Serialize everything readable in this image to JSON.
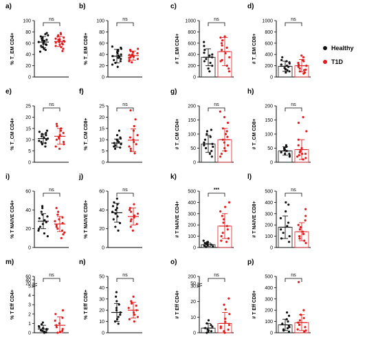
{
  "legend": {
    "healthy_label": "Healthy",
    "t1d_label": "T1D",
    "healthy_color": "#111111",
    "t1d_color": "#e31a1c"
  },
  "chart_data": [
    {
      "panel": "a)",
      "type": "scatter",
      "ylabel": "% T_EM CD4+",
      "ylim": [
        0,
        100
      ],
      "yticks": [
        0,
        20,
        40,
        60,
        80,
        100
      ],
      "sig": "ns",
      "series": [
        {
          "name": "Healthy",
          "mean": 62,
          "sd": 10,
          "values": [
            45,
            48,
            50,
            53,
            55,
            57,
            58,
            59,
            60,
            61,
            62,
            63,
            64,
            65,
            66,
            68,
            70,
            72,
            74,
            76,
            78
          ]
        },
        {
          "name": "T1D",
          "mean": 63,
          "sd": 9,
          "values": [
            46,
            50,
            53,
            55,
            57,
            58,
            60,
            61,
            62,
            63,
            64,
            65,
            66,
            67,
            68,
            70,
            72,
            74,
            76,
            78
          ]
        }
      ]
    },
    {
      "panel": "b)",
      "type": "scatter",
      "ylabel": "% T_EM CD8+",
      "ylim": [
        0,
        100
      ],
      "yticks": [
        0,
        20,
        40,
        60,
        80,
        100
      ],
      "sig": "ns",
      "series": [
        {
          "name": "Healthy",
          "mean": 37,
          "sd": 12,
          "values": [
            18,
            22,
            25,
            28,
            30,
            32,
            34,
            35,
            37,
            38,
            40,
            42,
            44,
            46,
            48,
            50,
            52,
            54
          ]
        },
        {
          "name": "T1D",
          "mean": 38,
          "sd": 8,
          "values": [
            26,
            28,
            30,
            32,
            34,
            35,
            36,
            37,
            38,
            39,
            40,
            42,
            44,
            46,
            48,
            50
          ]
        }
      ]
    },
    {
      "panel": "c)",
      "type": "bar_scatter",
      "ylabel": "# T_EM CD4+",
      "ylim": [
        0,
        1000
      ],
      "yticks": [
        0,
        200,
        400,
        600,
        800,
        1000
      ],
      "sig": "ns",
      "series": [
        {
          "name": "Healthy",
          "mean": 350,
          "sd": 150,
          "values": [
            100,
            150,
            200,
            250,
            280,
            320,
            350,
            380,
            400,
            430,
            480,
            550,
            620
          ]
        },
        {
          "name": "T1D",
          "mean": 450,
          "sd": 250,
          "values": [
            100,
            150,
            200,
            280,
            350,
            420,
            480,
            520,
            560,
            600,
            650,
            700,
            720,
            300
          ]
        }
      ]
    },
    {
      "panel": "d)",
      "type": "bar_scatter",
      "ylabel": "# T_EM CD8+",
      "ylim": [
        0,
        1000
      ],
      "yticks": [
        0,
        200,
        400,
        600,
        800,
        1000
      ],
      "sig": "ns",
      "series": [
        {
          "name": "Healthy",
          "mean": 190,
          "sd": 90,
          "values": [
            80,
            100,
            120,
            140,
            160,
            180,
            200,
            220,
            240,
            260,
            280,
            300,
            350
          ]
        },
        {
          "name": "T1D",
          "mean": 200,
          "sd": 110,
          "values": [
            60,
            80,
            100,
            130,
            150,
            180,
            200,
            220,
            250,
            280,
            300,
            350,
            380,
            120
          ]
        }
      ]
    },
    {
      "panel": "e)",
      "type": "scatter",
      "ylabel": "% T_CM CD4+",
      "ylim": [
        0,
        25
      ],
      "yticks": [
        0,
        5,
        10,
        15,
        20,
        25
      ],
      "sig": "ns",
      "series": [
        {
          "name": "Healthy",
          "mean": 10.5,
          "sd": 2,
          "values": [
            7,
            8,
            8.5,
            9,
            9.5,
            10,
            10.5,
            11,
            11.5,
            12,
            12.5,
            13,
            13.5,
            14
          ]
        },
        {
          "name": "T1D",
          "mean": 11.5,
          "sd": 3.5,
          "values": [
            6,
            7,
            8,
            9,
            10,
            10.5,
            11,
            12,
            13,
            14,
            15,
            16,
            17
          ]
        }
      ]
    },
    {
      "panel": "f)",
      "type": "scatter",
      "ylabel": "% T_CM CD8+",
      "ylim": [
        0,
        25
      ],
      "yticks": [
        0,
        5,
        10,
        15,
        20,
        25
      ],
      "sig": "ns",
      "series": [
        {
          "name": "Healthy",
          "mean": 8.5,
          "sd": 1.8,
          "values": [
            6,
            6.5,
            7,
            7.5,
            8,
            8.5,
            9,
            9.5,
            10,
            10.5,
            11,
            12,
            14
          ]
        },
        {
          "name": "T1D",
          "mean": 9.8,
          "sd": 5,
          "values": [
            4,
            5,
            6,
            7,
            8,
            9,
            10,
            11,
            12,
            14,
            16,
            19,
            23
          ]
        }
      ]
    },
    {
      "panel": "g)",
      "type": "bar_scatter",
      "ylabel": "# T_CM CD4+",
      "ylim": [
        0,
        200
      ],
      "yticks": [
        0,
        50,
        100,
        150,
        200
      ],
      "sig": "ns",
      "series": [
        {
          "name": "Healthy",
          "mean": 65,
          "sd": 30,
          "values": [
            20,
            30,
            40,
            50,
            55,
            60,
            65,
            70,
            80,
            90,
            100,
            110,
            115
          ]
        },
        {
          "name": "T1D",
          "mean": 80,
          "sd": 40,
          "values": [
            20,
            30,
            40,
            50,
            60,
            70,
            80,
            90,
            100,
            120,
            140,
            160,
            180,
            110
          ]
        }
      ]
    },
    {
      "panel": "h)",
      "type": "bar_scatter",
      "ylabel": "# T_CM CD8+",
      "ylim": [
        0,
        200
      ],
      "yticks": [
        0,
        50,
        100,
        150,
        200
      ],
      "sig": "ns",
      "series": [
        {
          "name": "Healthy",
          "mean": 40,
          "sd": 15,
          "values": [
            20,
            25,
            30,
            35,
            40,
            45,
            50,
            55,
            60,
            30,
            45
          ]
        },
        {
          "name": "T1D",
          "mean": 45,
          "sd": 35,
          "values": [
            10,
            15,
            20,
            25,
            30,
            35,
            40,
            50,
            60,
            80,
            110,
            140,
            160,
            30
          ]
        }
      ]
    },
    {
      "panel": "i)",
      "type": "scatter",
      "ylabel": "% T NAIVE CD4+",
      "ylim": [
        0,
        60
      ],
      "yticks": [
        0,
        20,
        40,
        60
      ],
      "sig": "ns",
      "series": [
        {
          "name": "Healthy",
          "mean": 28,
          "sd": 8,
          "values": [
            12,
            15,
            18,
            20,
            22,
            25,
            27,
            29,
            31,
            33,
            35,
            38,
            42,
            44
          ]
        },
        {
          "name": "T1D",
          "mean": 25,
          "sd": 8,
          "values": [
            10,
            14,
            16,
            18,
            20,
            22,
            24,
            26,
            28,
            30,
            32,
            35,
            38,
            42
          ]
        }
      ]
    },
    {
      "panel": "j)",
      "type": "scatter",
      "ylabel": "% T NAIVE CD8+",
      "ylim": [
        0,
        60
      ],
      "yticks": [
        0,
        20,
        40,
        60
      ],
      "sig": "ns",
      "series": [
        {
          "name": "Healthy",
          "mean": 37,
          "sd": 10,
          "values": [
            18,
            22,
            26,
            30,
            33,
            36,
            38,
            40,
            42,
            44,
            46,
            48,
            52
          ]
        },
        {
          "name": "T1D",
          "mean": 33,
          "sd": 9,
          "values": [
            18,
            22,
            25,
            28,
            30,
            32,
            34,
            36,
            38,
            40,
            42,
            46
          ]
        }
      ]
    },
    {
      "panel": "k)",
      "type": "bar_scatter",
      "ylabel": "# T NAIVE CD4+",
      "ylim": [
        0,
        500
      ],
      "yticks": [
        0,
        100,
        200,
        300,
        400,
        500
      ],
      "sig": "***",
      "series": [
        {
          "name": "Healthy",
          "mean": 25,
          "sd": 15,
          "values": [
            5,
            10,
            15,
            20,
            25,
            30,
            35,
            40,
            45,
            50,
            60
          ]
        },
        {
          "name": "T1D",
          "mean": 190,
          "sd": 110,
          "values": [
            50,
            80,
            100,
            130,
            160,
            190,
            220,
            250,
            280,
            320,
            360,
            400,
            60
          ]
        }
      ]
    },
    {
      "panel": "l)",
      "type": "bar_scatter",
      "ylabel": "# T NAIVE CD8+",
      "ylim": [
        0,
        500
      ],
      "yticks": [
        0,
        100,
        200,
        300,
        400,
        500
      ],
      "sig": "ns",
      "series": [
        {
          "name": "Healthy",
          "mean": 180,
          "sd": 100,
          "values": [
            50,
            80,
            100,
            130,
            160,
            190,
            220,
            260,
            320,
            380,
            400
          ]
        },
        {
          "name": "T1D",
          "mean": 140,
          "sd": 80,
          "values": [
            40,
            60,
            80,
            100,
            120,
            140,
            160,
            180,
            200,
            240,
            280,
            340
          ]
        }
      ]
    },
    {
      "panel": "m)",
      "type": "scatter_broken",
      "ylabel": "% T Eff CD4+",
      "ylim": [
        0,
        5
      ],
      "ylim_upper": [
        20,
        60
      ],
      "yticks": [
        0,
        1,
        2,
        3,
        4,
        5
      ],
      "yticks_upper": [
        20,
        40,
        60
      ],
      "sig": "ns",
      "series": [
        {
          "name": "Healthy",
          "mean": 0.4,
          "sd": 0.4,
          "values": [
            0,
            0.05,
            0.1,
            0.2,
            0.25,
            0.3,
            0.4,
            0.5,
            0.6,
            0.7,
            0.9,
            1.1
          ]
        },
        {
          "name": "T1D",
          "mean": 0.8,
          "sd": 0.9,
          "values": [
            0,
            0.1,
            0.2,
            0.4,
            0.6,
            0.8,
            1,
            1.3,
            1.6,
            2,
            2.4
          ]
        }
      ]
    },
    {
      "panel": "n)",
      "type": "scatter",
      "ylabel": "% T Eff CD8+",
      "ylim": [
        0,
        50
      ],
      "yticks": [
        0,
        10,
        20,
        30,
        40,
        50
      ],
      "sig": "ns",
      "series": [
        {
          "name": "Healthy",
          "mean": 18,
          "sd": 8,
          "values": [
            8,
            10,
            12,
            14,
            16,
            18,
            20,
            22,
            25,
            28,
            32,
            36
          ]
        },
        {
          "name": "T1D",
          "mean": 20,
          "sd": 7,
          "values": [
            10,
            12,
            14,
            16,
            18,
            20,
            22,
            24,
            26,
            28,
            32
          ]
        }
      ]
    },
    {
      "panel": "o)",
      "type": "bar_scatter_broken",
      "ylabel": "# T Eff CD4+",
      "ylim": [
        0,
        30
      ],
      "ylim_upper": [
        50,
        200
      ],
      "yticks": [
        0,
        10,
        20,
        30
      ],
      "yticks_upper": [
        50,
        200
      ],
      "sig": "ns",
      "series": [
        {
          "name": "Healthy",
          "mean": 3,
          "sd": 3,
          "values": [
            0,
            0.5,
            1,
            1.5,
            2,
            3,
            4,
            5,
            6,
            8
          ]
        },
        {
          "name": "T1D",
          "mean": 6,
          "sd": 7,
          "values": [
            0,
            1,
            2,
            3,
            4,
            5,
            7,
            9,
            12,
            15,
            18,
            22
          ]
        }
      ]
    },
    {
      "panel": "p)",
      "type": "bar_scatter",
      "ylabel": "# T Eff CD8+",
      "ylim": [
        0,
        500
      ],
      "yticks": [
        0,
        100,
        200,
        300,
        400,
        500
      ],
      "sig": "ns",
      "series": [
        {
          "name": "Healthy",
          "mean": 70,
          "sd": 50,
          "values": [
            10,
            20,
            30,
            40,
            50,
            60,
            80,
            100,
            120,
            150,
            180
          ]
        },
        {
          "name": "T1D",
          "mean": 90,
          "sd": 70,
          "values": [
            10,
            20,
            30,
            50,
            70,
            90,
            110,
            130,
            160,
            200,
            450
          ]
        }
      ]
    }
  ]
}
